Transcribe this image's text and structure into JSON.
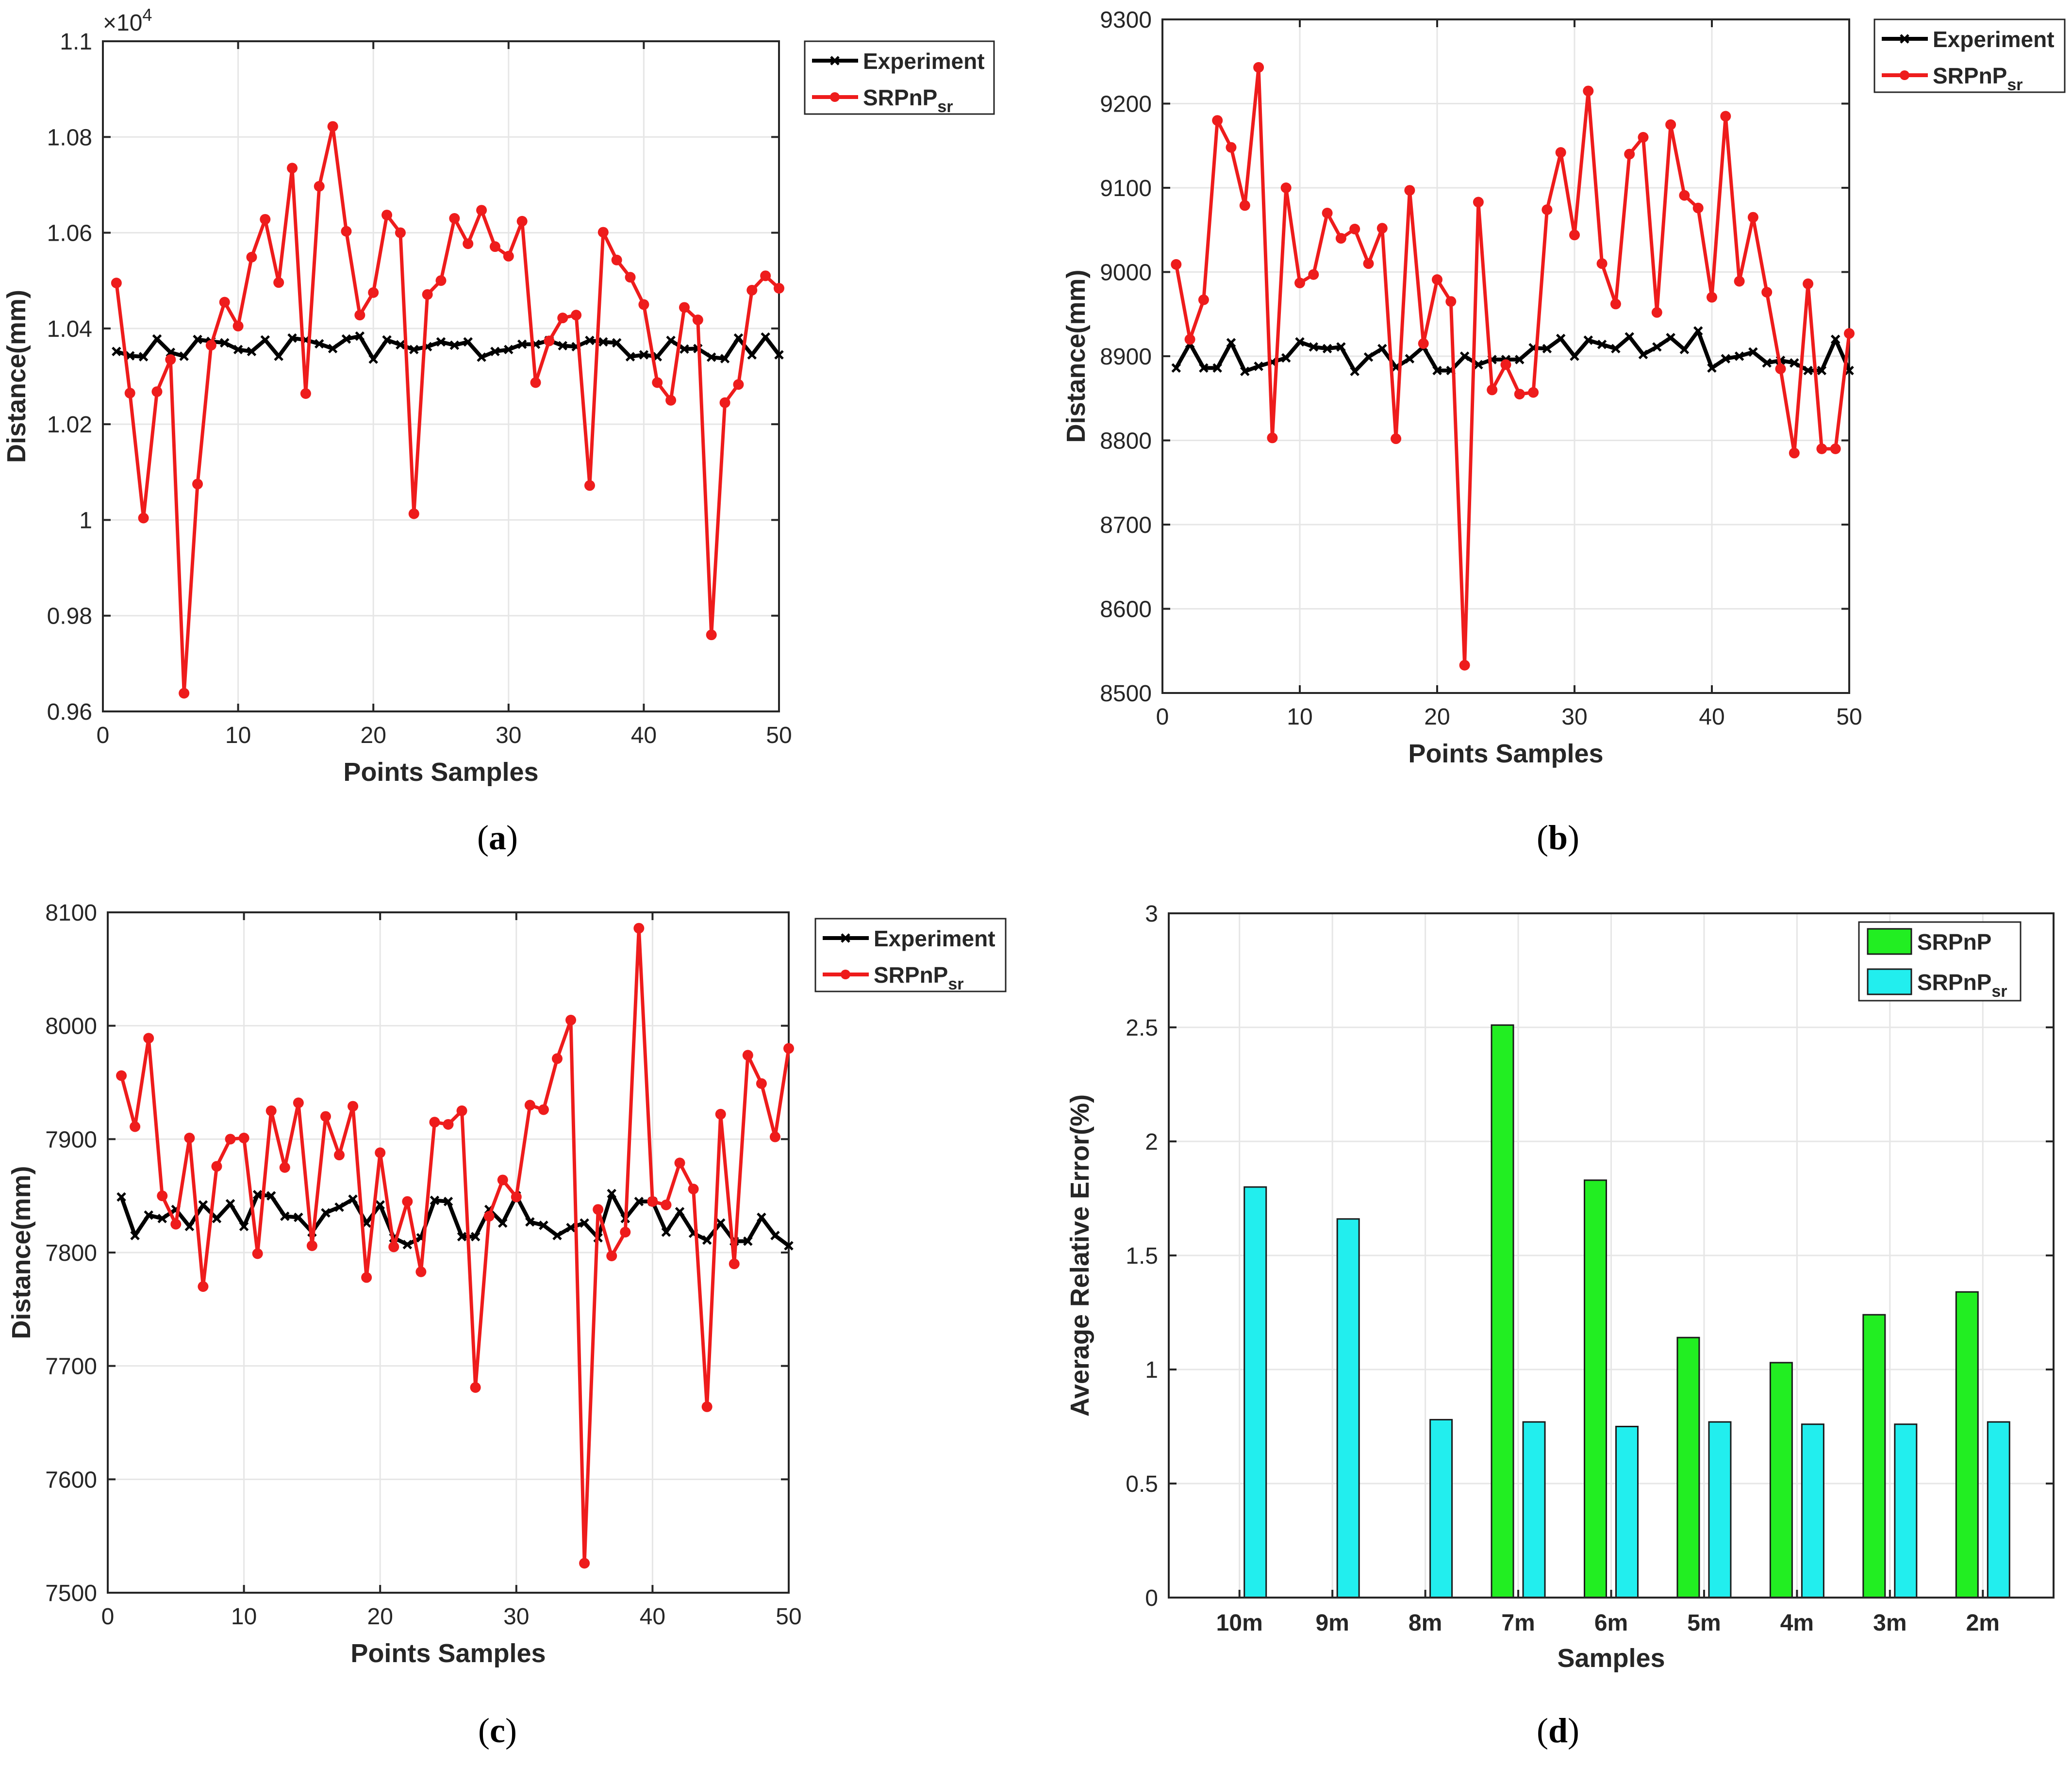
{
  "colors": {
    "experiment": "#000000",
    "srpnp_sr_line": "#ee1c1c",
    "srpnp_bar": "#22ee22",
    "srpnp_sr_bar": "#22eeee",
    "grid": "#e6e6e6"
  },
  "captions": [
    "a",
    "b",
    "c",
    "d"
  ],
  "chart_data": [
    {
      "id": "a",
      "type": "line",
      "xlabel": "Points Samples",
      "ylabel": "Distance(mm)",
      "exponent_label": "×10",
      "exponent_power": "4",
      "xlim": [
        0,
        50
      ],
      "ylim": [
        0.96,
        1.1
      ],
      "xticks": [
        0,
        10,
        20,
        30,
        40,
        50
      ],
      "xtick_labels": [
        "0",
        "10",
        "20",
        "30",
        "40",
        "50"
      ],
      "yticks": [
        0.96,
        0.98,
        1.0,
        1.02,
        1.04,
        1.06,
        1.08,
        1.1
      ],
      "ytick_labels": [
        "0.96",
        "0.98",
        "1",
        "1.02",
        "1.04",
        "1.06",
        "1.08",
        "1.1"
      ],
      "legend": {
        "position": "top-right",
        "entries": [
          {
            "name": "Experiment",
            "sub": ""
          },
          {
            "name": "SRPnP",
            "sub": "sr"
          }
        ]
      },
      "x": [
        1,
        2,
        3,
        4,
        5,
        6,
        7,
        8,
        9,
        10,
        11,
        12,
        13,
        14,
        15,
        16,
        17,
        18,
        19,
        20,
        21,
        22,
        23,
        24,
        25,
        26,
        27,
        28,
        29,
        30,
        31,
        32,
        33,
        34,
        35,
        36,
        37,
        38,
        39,
        40,
        41,
        42,
        43,
        44,
        45,
        46,
        47,
        48,
        49,
        50
      ],
      "series": [
        {
          "name": "Experiment",
          "marker": "x",
          "values": [
            1.0352,
            1.0343,
            1.0341,
            1.0378,
            1.035,
            1.0342,
            1.0377,
            1.0373,
            1.037,
            1.0356,
            1.0352,
            1.0376,
            1.0342,
            1.038,
            1.0376,
            1.0368,
            1.0358,
            1.0378,
            1.0384,
            1.0336,
            1.0376,
            1.0366,
            1.0356,
            1.0362,
            1.0372,
            1.0365,
            1.0372,
            1.034,
            1.0352,
            1.0356,
            1.0367,
            1.0367,
            1.0375,
            1.0364,
            1.0362,
            1.0375,
            1.0372,
            1.037,
            1.0341,
            1.0345,
            1.0341,
            1.0375,
            1.0357,
            1.0358,
            1.034,
            1.0337,
            1.038,
            1.0345,
            1.0382,
            1.0345
          ]
        },
        {
          "name": "SRPnP_sr",
          "marker": "o",
          "values": [
            1.0495,
            1.0265,
            1.0004,
            1.0268,
            1.0335,
            0.9638,
            1.0075,
            1.0365,
            1.0455,
            1.0405,
            1.0549,
            1.0628,
            1.0496,
            1.0735,
            1.0264,
            1.0697,
            1.0822,
            1.0603,
            1.0428,
            1.0475,
            1.0637,
            1.06,
            1.0013,
            1.0471,
            1.05,
            1.063,
            1.0577,
            1.0647,
            1.0571,
            1.0551,
            1.0624,
            1.0287,
            1.0374,
            1.0422,
            1.0428,
            1.0072,
            1.0601,
            1.0543,
            1.0507,
            1.045,
            1.0287,
            1.025,
            1.0444,
            1.0418,
            0.976,
            1.0245,
            1.0283,
            1.048,
            1.051,
            1.0484
          ]
        }
      ]
    },
    {
      "id": "b",
      "type": "line",
      "xlabel": "Points Samples",
      "ylabel": "Distance(mm)",
      "xlim": [
        0,
        50
      ],
      "ylim": [
        8500,
        9300
      ],
      "xticks": [
        0,
        10,
        20,
        30,
        40,
        50
      ],
      "xtick_labels": [
        "0",
        "10",
        "20",
        "30",
        "40",
        "50"
      ],
      "yticks": [
        8500,
        8600,
        8700,
        8800,
        8900,
        9000,
        9100,
        9200,
        9300
      ],
      "ytick_labels": [
        "8500",
        "8600",
        "8700",
        "8800",
        "8900",
        "9000",
        "9100",
        "9200",
        "9300"
      ],
      "legend": {
        "position": "top-right",
        "entries": [
          {
            "name": "Experiment",
            "sub": ""
          },
          {
            "name": "SRPnP",
            "sub": "sr"
          }
        ]
      },
      "x": [
        1,
        2,
        3,
        4,
        5,
        6,
        7,
        8,
        9,
        10,
        11,
        12,
        13,
        14,
        15,
        16,
        17,
        18,
        19,
        20,
        21,
        22,
        23,
        24,
        25,
        26,
        27,
        28,
        29,
        30,
        31,
        32,
        33,
        34,
        35,
        36,
        37,
        38,
        39,
        40,
        41,
        42,
        43,
        44,
        45,
        46,
        47,
        48,
        49,
        50
      ],
      "series": [
        {
          "name": "Experiment",
          "marker": "x",
          "values": [
            8886,
            8915,
            8886,
            8886,
            8916,
            8882,
            8888,
            8893,
            8898,
            8917,
            8911,
            8909,
            8911,
            8882,
            8899,
            8909,
            8887,
            8897,
            8911,
            8883,
            8883,
            8900,
            8890,
            8896,
            8896,
            8896,
            8910,
            8909,
            8921,
            8900,
            8919,
            8914,
            8909,
            8923,
            8902,
            8911,
            8922,
            8908,
            8930,
            8886,
            8897,
            8900,
            8905,
            8892,
            8895,
            8892,
            8883,
            8883,
            8920,
            8883
          ]
        },
        {
          "name": "SRPnP_sr",
          "marker": "o",
          "values": [
            9009,
            8920,
            8967,
            9180,
            9148,
            9079,
            9243,
            8803,
            9100,
            8987,
            8997,
            9070,
            9040,
            9051,
            9010,
            9052,
            8802,
            9097,
            8915,
            8991,
            8965,
            8533,
            9083,
            8860,
            8890,
            8855,
            8857,
            9074,
            9142,
            9044,
            9215,
            9010,
            8962,
            9140,
            9160,
            8952,
            9175,
            9091,
            9076,
            8970,
            9185,
            8989,
            9065,
            8976,
            8885,
            8785,
            8986,
            8790,
            8790,
            8927
          ]
        }
      ]
    },
    {
      "id": "c",
      "type": "line",
      "xlabel": "Points Samples",
      "ylabel": "Distance(mm)",
      "xlim": [
        0,
        50
      ],
      "ylim": [
        7500,
        8100
      ],
      "xticks": [
        0,
        10,
        20,
        30,
        40,
        50
      ],
      "xtick_labels": [
        "0",
        "10",
        "20",
        "30",
        "40",
        "50"
      ],
      "yticks": [
        7500,
        7600,
        7700,
        7800,
        7900,
        8000,
        8100
      ],
      "ytick_labels": [
        "7500",
        "7600",
        "7700",
        "7800",
        "7900",
        "8000",
        "8100"
      ],
      "legend": {
        "position": "top-right",
        "entries": [
          {
            "name": "Experiment",
            "sub": ""
          },
          {
            "name": "SRPnP",
            "sub": "sr"
          }
        ]
      },
      "x": [
        1,
        2,
        3,
        4,
        5,
        6,
        7,
        8,
        9,
        10,
        11,
        12,
        13,
        14,
        15,
        16,
        17,
        18,
        19,
        20,
        21,
        22,
        23,
        24,
        25,
        26,
        27,
        28,
        29,
        30,
        31,
        32,
        33,
        34,
        35,
        36,
        37,
        38,
        39,
        40,
        41,
        42,
        43,
        44,
        45,
        46,
        47,
        48,
        49,
        50
      ],
      "series": [
        {
          "name": "Experiment",
          "marker": "x",
          "values": [
            7849,
            7815,
            7833,
            7830,
            7838,
            7823,
            7842,
            7830,
            7843,
            7823,
            7851,
            7850,
            7832,
            7831,
            7818,
            7835,
            7840,
            7847,
            7826,
            7842,
            7813,
            7807,
            7813,
            7846,
            7845,
            7814,
            7814,
            7838,
            7826,
            7850,
            7827,
            7824,
            7815,
            7822,
            7826,
            7813,
            7852,
            7830,
            7845,
            7845,
            7818,
            7836,
            7817,
            7811,
            7826,
            7810,
            7810,
            7831,
            7815,
            7806
          ]
        },
        {
          "name": "SRPnP_sr",
          "marker": "o",
          "values": [
            7956,
            7911,
            7989,
            7850,
            7825,
            7901,
            7770,
            7876,
            7900,
            7901,
            7799,
            7925,
            7875,
            7932,
            7806,
            7920,
            7886,
            7929,
            7778,
            7888,
            7805,
            7845,
            7783,
            7915,
            7913,
            7925,
            7681,
            7832,
            7864,
            7849,
            7930,
            7926,
            7971,
            8005,
            7526,
            7838,
            7797,
            7818,
            8086,
            7845,
            7842,
            7879,
            7856,
            7664,
            7922,
            7790,
            7974,
            7949,
            7902,
            7980
          ]
        }
      ]
    },
    {
      "id": "d",
      "type": "bar",
      "xlabel": "Samples",
      "ylabel": "Average Relative Error(%)",
      "ylim": [
        0,
        3
      ],
      "yticks": [
        0,
        0.5,
        1,
        1.5,
        2,
        2.5,
        3
      ],
      "ytick_labels": [
        "0",
        "0.5",
        "1",
        "1.5",
        "2",
        "2.5",
        "3"
      ],
      "categories": [
        "10m",
        "9m",
        "8m",
        "7m",
        "6m",
        "5m",
        "4m",
        "3m",
        "2m"
      ],
      "legend": {
        "position": "top-right",
        "entries": [
          {
            "name": "SRPnP",
            "sub": ""
          },
          {
            "name": "SRPnP",
            "sub": "sr"
          }
        ]
      },
      "series": [
        {
          "name": "SRPnP",
          "values": [
            0,
            0,
            0,
            2.51,
            1.83,
            1.14,
            1.03,
            1.24,
            1.34
          ]
        },
        {
          "name": "SRPnP_sr",
          "values": [
            1.8,
            1.66,
            0.78,
            0.77,
            0.75,
            0.77,
            0.76,
            0.76,
            0.77
          ]
        }
      ]
    }
  ]
}
